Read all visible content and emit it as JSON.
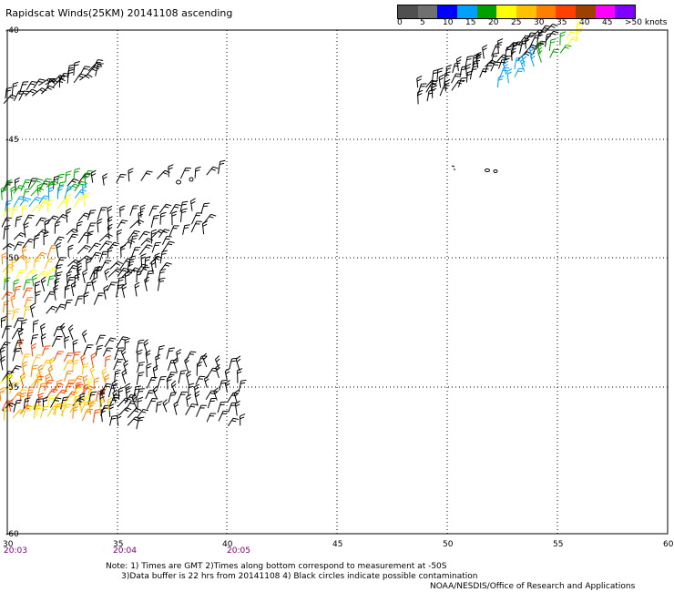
{
  "header": {
    "title": "Rapidscat Winds(25KM) 20141108 ascending"
  },
  "legend": {
    "colors": [
      "#505050",
      "#707070",
      "#0000ff",
      "#00a0ff",
      "#00a000",
      "#ffff00",
      "#ffc000",
      "#ff8000",
      "#ff4000",
      "#a04000",
      "#ff00ff",
      "#8000ff"
    ],
    "labels": [
      "0",
      "5",
      "10",
      "15",
      "20",
      "25",
      "30",
      "35",
      "40",
      "45",
      ">50 knots"
    ]
  },
  "axes": {
    "x_ticks": [
      "30",
      "35",
      "40",
      "45",
      "50",
      "55",
      "60"
    ],
    "y_ticks": [
      "-40",
      "-45",
      "-50",
      "-55",
      "-60"
    ]
  },
  "times": [
    "20:03",
    "20:04",
    "20:05"
  ],
  "notes": {
    "line1": "Note: 1) Times are GMT 2)Times along bottom correspond to measurement at -50S",
    "line2": "      3)Data buffer is 22 hrs from 20141108 4) Black circles indicate possible contamination",
    "credit": "NOAA/NESDIS/Office of Research and Applications"
  }
}
